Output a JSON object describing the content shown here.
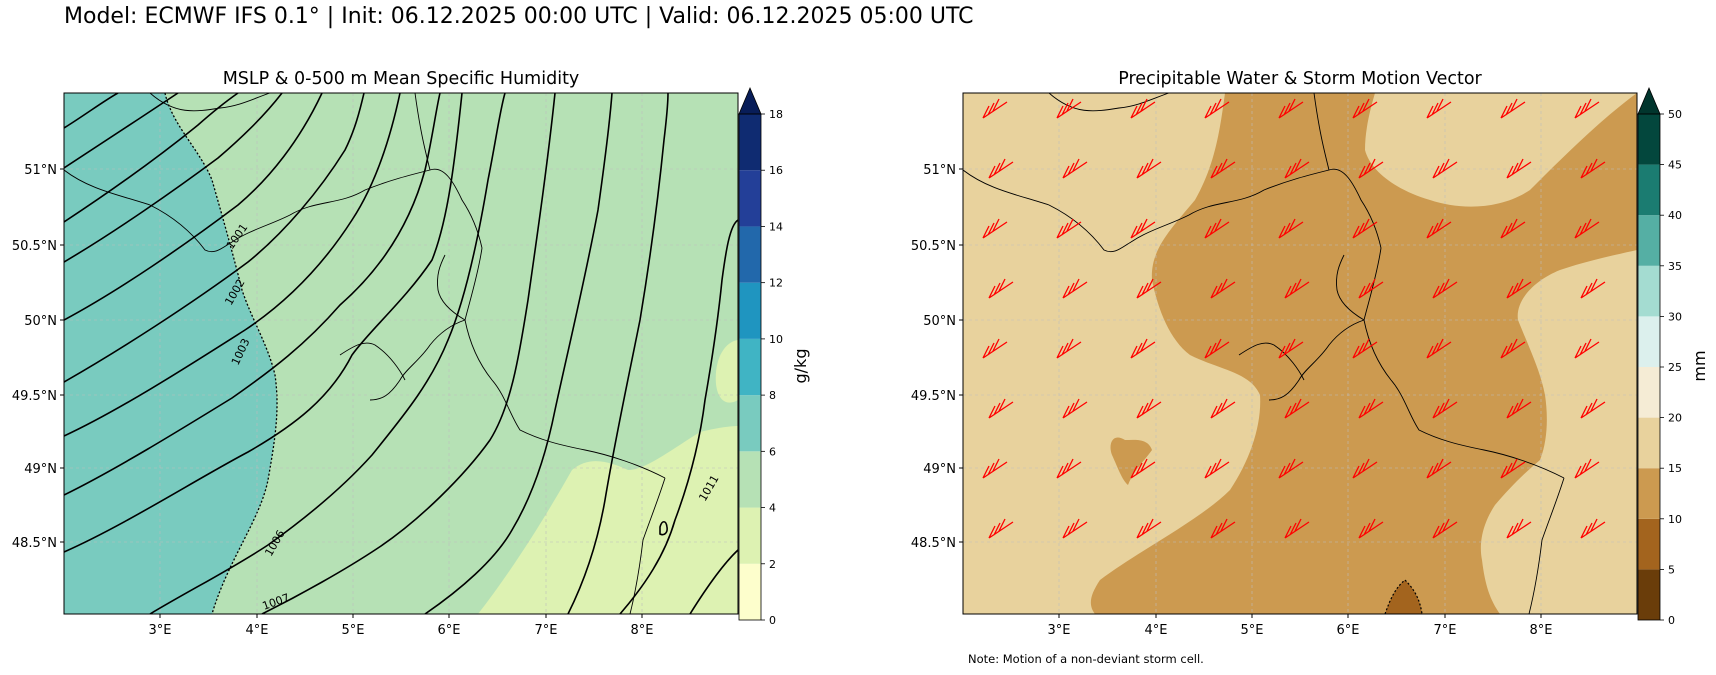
{
  "suptitle": "Model: ECMWF IFS 0.1° | Init: 06.12.2025 00:00 UTC | Valid: 06.12.2025 05:00 UTC",
  "left_panel": {
    "title": "MSLP & 0-500 m Mean Specific Humidity",
    "colorbar": {
      "label": "g/kg",
      "ticks": [
        "0",
        "2",
        "4",
        "6",
        "8",
        "10",
        "12",
        "14",
        "16",
        "18"
      ],
      "colors": [
        "#fdfecc",
        "#ddf2b2",
        "#b6e1b5",
        "#79cbbf",
        "#40b4c4",
        "#1f95c0",
        "#2268ab",
        "#233f98",
        "#0f2b71",
        "#081d58"
      ]
    },
    "isobar_labels": [
      "1001",
      "1002",
      "1003",
      "1006",
      "1007",
      "1011"
    ]
  },
  "right_panel": {
    "title": "Precipitable Water & Storm Motion Vector",
    "colorbar": {
      "label": "mm",
      "ticks": [
        "0",
        "5",
        "10",
        "15",
        "20",
        "25",
        "30",
        "35",
        "40",
        "45",
        "50"
      ],
      "colors": [
        "#6a3d0a",
        "#a3641e",
        "#cc9a50",
        "#e8d29d",
        "#f5ecd5",
        "#dcf0ed",
        "#a4dcd1",
        "#55afa4",
        "#1b7c71",
        "#03473d",
        "#01352d"
      ]
    },
    "barb_color": "#ff0000",
    "note": "Note: Motion of a non-deviant storm cell."
  },
  "axes": {
    "lon_ticks": [
      "3°E",
      "4°E",
      "5°E",
      "6°E",
      "7°E",
      "8°E"
    ],
    "lat_ticks": [
      "51°N",
      "50.5°N",
      "50°N",
      "49.5°N",
      "49°N",
      "48.5°N"
    ]
  }
}
